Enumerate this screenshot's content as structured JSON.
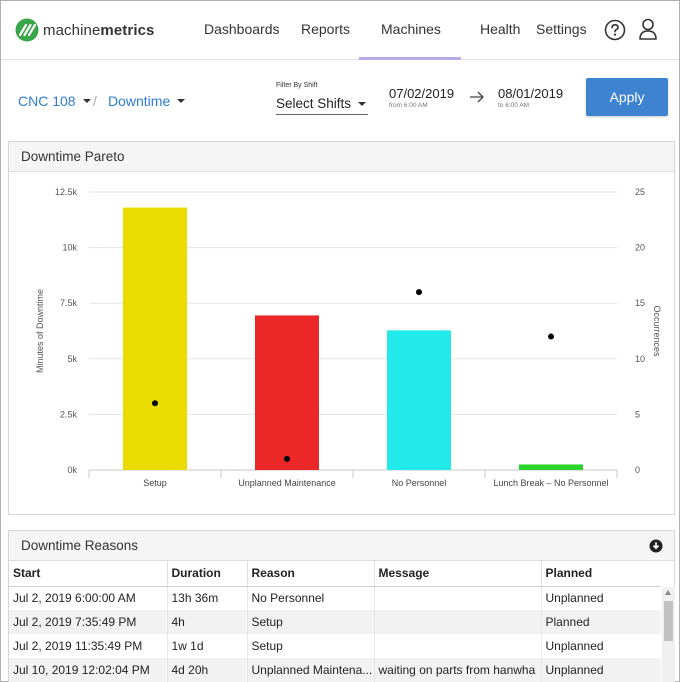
{
  "app": {
    "brand_regular": "machine",
    "brand_bold": "metrics"
  },
  "nav": {
    "items": [
      {
        "label": "Dashboards"
      },
      {
        "label": "Reports"
      },
      {
        "label": "Machines"
      },
      {
        "label": "Health"
      },
      {
        "label": "Settings"
      }
    ],
    "active": "Machines",
    "help_icon": "question-circle-icon",
    "user_icon": "user-icon"
  },
  "filters": {
    "machine": "CNC 108",
    "separator": "/",
    "report": "Downtime",
    "shift_label": "Filter By Shift",
    "shift_value": "Select Shifts",
    "start_date": "07/02/2019",
    "start_sub": "from 6:00 AM",
    "end_date": "08/01/2019",
    "end_sub": "to 6:00 AM",
    "apply_label": "Apply"
  },
  "pareto": {
    "title": "Downtime Pareto",
    "chart_data": {
      "type": "bar",
      "categories": [
        "Setup",
        "Unplanned Maintenance",
        "No Personnel",
        "Lunch Break - No Personnel"
      ],
      "series": [
        {
          "name": "Minutes of Downtime",
          "values": [
            11800,
            6950,
            6280,
            250
          ],
          "colors": [
            "#ebdc00",
            "#ec2727",
            "#22eaea",
            "#2bd42b"
          ]
        },
        {
          "name": "Occurrences",
          "values": [
            6,
            1,
            16,
            12
          ]
        }
      ],
      "ylabel": "Minutes of Downtime",
      "y2label": "Occurrences",
      "ylim": [
        0,
        12500
      ],
      "y2lim": [
        0,
        25
      ],
      "yticks": [
        "0k",
        "2.5k",
        "5k",
        "7.5k",
        "10k",
        "12.5k"
      ],
      "y2ticks": [
        "0",
        "5",
        "10",
        "15",
        "20",
        "25"
      ],
      "grid": true
    }
  },
  "reasons": {
    "title": "Downtime Reasons",
    "export_icon": "download-circle-icon",
    "columns": [
      "Start",
      "Duration",
      "Reason",
      "Message",
      "Planned"
    ],
    "rows": [
      [
        "Jul 2, 2019 6:00:00 AM",
        "13h 36m",
        "No Personnel",
        "",
        "Unplanned"
      ],
      [
        "Jul 2, 2019 7:35:49 PM",
        "4h",
        "Setup",
        "",
        "Planned"
      ],
      [
        "Jul 2, 2019 11:35:49 PM",
        "1w 1d",
        "Setup",
        "",
        "Unplanned"
      ],
      [
        "Jul 10, 2019 12:02:04 PM",
        "4d 20h",
        "Unplanned Maintena...",
        "waiting on parts from hanwha",
        "Unplanned"
      ]
    ]
  }
}
